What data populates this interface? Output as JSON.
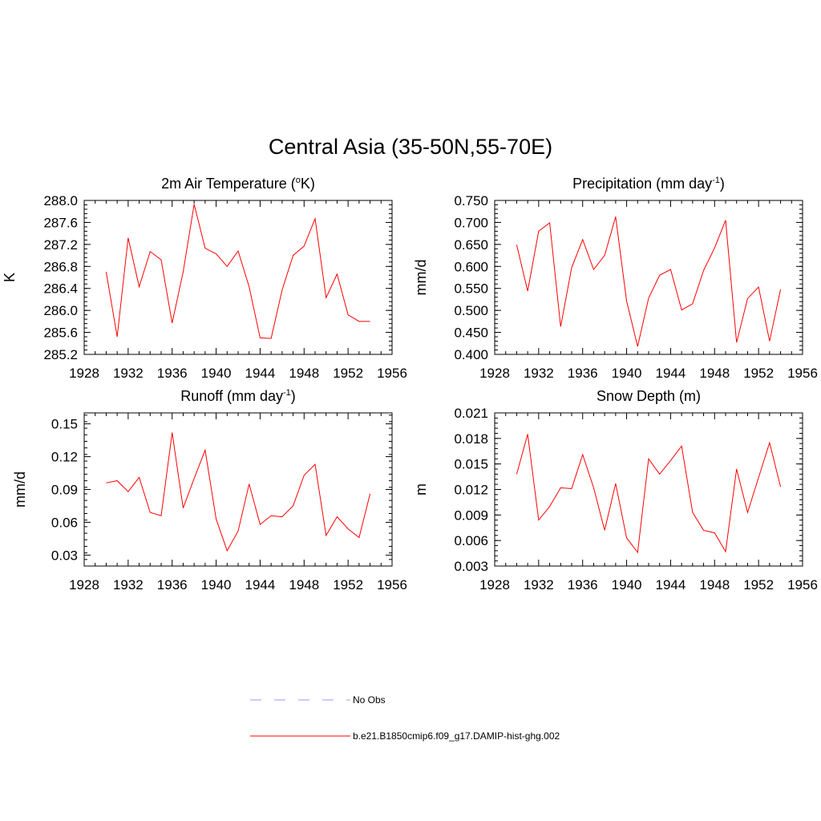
{
  "figure": {
    "title": "Central Asia (35-50N,55-70E)"
  },
  "legend": {
    "items": [
      {
        "label": "No Obs",
        "color": "#9999ee",
        "style": "dashed"
      },
      {
        "label": "b.e21.B1850cmip6.f09_g17.DAMIP-hist-ghg.002",
        "color": "#ff0000",
        "style": "solid"
      }
    ]
  },
  "colors": {
    "series": "#ff0000",
    "obs": "#9999ee",
    "axis": "#000000"
  },
  "chart_data": [
    {
      "type": "line",
      "title_main": "2m Air Temperature (",
      "title_sup": "o",
      "title_end": "K)",
      "ylabel": "K",
      "xlim": [
        1928,
        1956
      ],
      "ylim": [
        285.2,
        288.0
      ],
      "xticks": [
        1928,
        1932,
        1936,
        1940,
        1944,
        1948,
        1952,
        1956
      ],
      "yticks": [
        "285.2",
        "285.6",
        "286.0",
        "286.4",
        "286.8",
        "287.2",
        "287.6",
        "288.0"
      ],
      "x": [
        1930,
        1931,
        1932,
        1933,
        1934,
        1935,
        1936,
        1937,
        1938,
        1939,
        1940,
        1941,
        1942,
        1943,
        1944,
        1945,
        1946,
        1947,
        1948,
        1949,
        1950,
        1951,
        1952,
        1953,
        1954
      ],
      "series": [
        {
          "name": "b.e21.B1850cmip6.f09_g17.DAMIP-hist-ghg.002",
          "values": [
            286.7,
            285.52,
            287.32,
            286.43,
            287.07,
            286.92,
            285.77,
            286.7,
            287.93,
            287.13,
            287.03,
            286.8,
            287.08,
            286.43,
            285.5,
            285.49,
            286.37,
            287.0,
            287.17,
            287.67,
            286.23,
            286.66,
            285.92,
            285.8,
            285.8
          ]
        }
      ]
    },
    {
      "type": "line",
      "title_main": "Precipitation (mm day",
      "title_sup": "-1",
      "title_end": ")",
      "ylabel": "mm/d",
      "xlim": [
        1928,
        1956
      ],
      "ylim": [
        0.4,
        0.75
      ],
      "xticks": [
        1928,
        1932,
        1936,
        1940,
        1944,
        1948,
        1952,
        1956
      ],
      "yticks": [
        "0.400",
        "0.450",
        "0.500",
        "0.550",
        "0.600",
        "0.650",
        "0.700",
        "0.750"
      ],
      "x": [
        1930,
        1931,
        1932,
        1933,
        1934,
        1935,
        1936,
        1937,
        1938,
        1939,
        1940,
        1941,
        1942,
        1943,
        1944,
        1945,
        1946,
        1947,
        1948,
        1949,
        1950,
        1951,
        1952,
        1953,
        1954
      ],
      "series": [
        {
          "name": "b.e21.B1850cmip6.f09_g17.DAMIP-hist-ghg.002",
          "values": [
            0.649,
            0.544,
            0.68,
            0.699,
            0.463,
            0.597,
            0.661,
            0.593,
            0.625,
            0.713,
            0.521,
            0.418,
            0.528,
            0.58,
            0.593,
            0.501,
            0.515,
            0.591,
            0.642,
            0.705,
            0.427,
            0.527,
            0.553,
            0.43,
            0.548
          ]
        }
      ]
    },
    {
      "type": "line",
      "title_main": "Runoff (mm day",
      "title_sup": "-1",
      "title_end": ")",
      "ylabel": "mm/d",
      "xlim": [
        1928,
        1956
      ],
      "ylim": [
        0.02,
        0.16
      ],
      "xticks": [
        1928,
        1932,
        1936,
        1940,
        1944,
        1948,
        1952,
        1956
      ],
      "yticks": [
        "0.03",
        "0.06",
        "0.09",
        "0.12",
        "0.15"
      ],
      "ytick_values": [
        0.03,
        0.06,
        0.09,
        0.12,
        0.15
      ],
      "x": [
        1930,
        1931,
        1932,
        1933,
        1934,
        1935,
        1936,
        1937,
        1938,
        1939,
        1940,
        1941,
        1942,
        1943,
        1944,
        1945,
        1946,
        1947,
        1948,
        1949,
        1950,
        1951,
        1952,
        1953,
        1954
      ],
      "series": [
        {
          "name": "b.e21.B1850cmip6.f09_g17.DAMIP-hist-ghg.002",
          "values": [
            0.096,
            0.098,
            0.088,
            0.101,
            0.069,
            0.066,
            0.142,
            0.073,
            0.1,
            0.126,
            0.063,
            0.034,
            0.052,
            0.095,
            0.058,
            0.066,
            0.065,
            0.075,
            0.103,
            0.113,
            0.048,
            0.065,
            0.054,
            0.046,
            0.086
          ]
        }
      ]
    },
    {
      "type": "line",
      "title_main": "Snow Depth (m)",
      "title_sup": "",
      "title_end": "",
      "ylabel": "m",
      "xlim": [
        1928,
        1956
      ],
      "ylim": [
        0.003,
        0.021
      ],
      "xticks": [
        1928,
        1932,
        1936,
        1940,
        1944,
        1948,
        1952,
        1956
      ],
      "yticks": [
        "0.003",
        "0.006",
        "0.009",
        "0.012",
        "0.015",
        "0.018",
        "0.021"
      ],
      "x": [
        1930,
        1931,
        1932,
        1933,
        1934,
        1935,
        1936,
        1937,
        1938,
        1939,
        1940,
        1941,
        1942,
        1943,
        1944,
        1945,
        1946,
        1947,
        1948,
        1949,
        1950,
        1951,
        1952,
        1953,
        1954
      ],
      "series": [
        {
          "name": "b.e21.B1850cmip6.f09_g17.DAMIP-hist-ghg.002",
          "values": [
            0.0138,
            0.0185,
            0.0084,
            0.01,
            0.0122,
            0.0121,
            0.0161,
            0.0122,
            0.0072,
            0.0127,
            0.0063,
            0.0046,
            0.0156,
            0.0138,
            0.0154,
            0.0171,
            0.0093,
            0.0072,
            0.0069,
            0.0047,
            0.0144,
            0.0093,
            0.0134,
            0.0175,
            0.0123
          ]
        }
      ]
    }
  ]
}
